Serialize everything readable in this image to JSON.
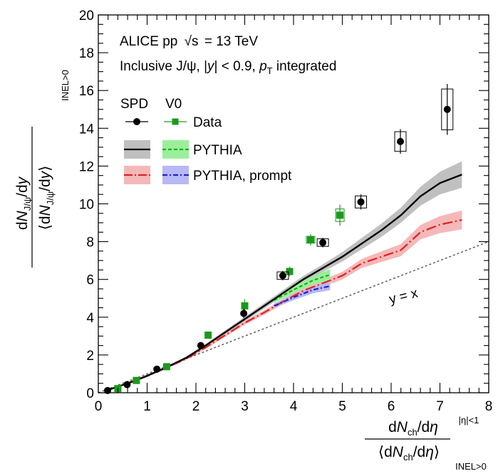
{
  "chart_data": {
    "type": "line",
    "title_line1": "ALICE pp",
    "title_sqrt": "√s",
    "title_energy": "= 13 TeV",
    "subtitle_pre": "Inclusive J/ψ, |",
    "subtitle_y": "y",
    "subtitle_mid": "| < 0.9, ",
    "subtitle_p": "p",
    "subtitle_T": "T",
    "subtitle_post": " integrated",
    "xlabel_d1": "d",
    "xlabel_N1": "N",
    "xlabel_ch1": "ch",
    "xlabel_rest1": "/d",
    "xlabel_eta1": "η",
    "xlabel_open": "⟨d",
    "xlabel_N2": "N",
    "xlabel_ch2": "ch",
    "xlabel_rest2": "/d",
    "xlabel_eta2": "η",
    "xlabel_close": "⟩",
    "xlabel_sup": "|η|<1",
    "xlabel_sub": "INEL>0",
    "ylabel_d1": "d",
    "ylabel_N1": "N",
    "ylabel_sub1": "J/ψ",
    "ylabel_rest1": "/d",
    "ylabel_y1": "y",
    "ylabel_open": "⟨d",
    "ylabel_N2": "N",
    "ylabel_sub2": "J/ψ",
    "ylabel_rest2": "/d",
    "ylabel_y2": "y",
    "ylabel_close": "⟩",
    "ylabel_sub": "INEL>0",
    "xlim": [
      0,
      8
    ],
    "ylim": [
      0,
      20
    ],
    "xticks": [
      "0",
      "1",
      "2",
      "3",
      "4",
      "5",
      "6",
      "7",
      "8"
    ],
    "yticks": [
      "0",
      "2",
      "4",
      "6",
      "8",
      "10",
      "12",
      "14",
      "16",
      "18",
      "20"
    ],
    "annotation_yx": "y = x",
    "legend": {
      "head_spd": "SPD",
      "head_v0": "V0",
      "data_label": "Data",
      "pythia_label": "PYTHIA",
      "prompt_label": "PYTHIA, prompt"
    },
    "colors": {
      "spd_data": "#000000",
      "v0_data": "#1a9a1a",
      "pythia_spd": "#000000",
      "pythia_spd_band": "#c0c0c0",
      "pythia_v0": "#22aa22",
      "pythia_v0_band": "#99f099",
      "prompt_spd": "#e02020",
      "prompt_spd_band": "#f5b8b8",
      "prompt_v0": "#2020d0",
      "prompt_v0_band": "#b8b8f5",
      "yx_line": "#555555"
    },
    "series": [
      {
        "name": "SPD Data",
        "x": [
          0.19,
          0.59,
          1.2,
          2.1,
          2.98,
          3.78,
          4.6,
          5.38,
          6.19,
          7.15
        ],
        "y": [
          0.12,
          0.43,
          1.25,
          2.5,
          4.2,
          6.2,
          7.95,
          10.1,
          13.3,
          15.0
        ],
        "yerr": [
          0.05,
          0.05,
          0.08,
          0.12,
          0.25,
          0.25,
          0.25,
          0.4,
          0.65,
          1.35
        ],
        "syst_boxes": [
          false,
          false,
          false,
          false,
          false,
          true,
          true,
          true,
          true,
          true
        ]
      },
      {
        "name": "V0 Data",
        "x": [
          0.4,
          0.78,
          1.4,
          2.25,
          3.0,
          3.92,
          4.35,
          4.95
        ],
        "y": [
          0.22,
          0.65,
          1.38,
          3.05,
          4.6,
          6.42,
          8.1,
          9.4
        ],
        "yerr": [
          0.05,
          0.06,
          0.08,
          0.12,
          0.35,
          0.25,
          0.3,
          0.55
        ]
      },
      {
        "name": "PYTHIA SPD",
        "x": [
          0.2,
          0.6,
          1.0,
          1.4,
          1.8,
          2.2,
          2.6,
          3.0,
          3.4,
          3.8,
          4.2,
          4.6,
          5.0,
          5.4,
          5.8,
          6.2,
          6.6,
          7.0,
          7.45
        ],
        "y": [
          0.15,
          0.5,
          0.9,
          1.35,
          1.85,
          2.5,
          3.2,
          3.9,
          4.6,
          5.3,
          6.0,
          6.6,
          7.2,
          7.9,
          8.6,
          9.4,
          10.4,
          11.1,
          11.55
        ],
        "band": [
          0.02,
          0.03,
          0.04,
          0.05,
          0.06,
          0.08,
          0.1,
          0.12,
          0.14,
          0.16,
          0.18,
          0.2,
          0.25,
          0.3,
          0.35,
          0.4,
          0.5,
          0.6,
          0.7
        ]
      },
      {
        "name": "PYTHIA V0",
        "x": [
          3.6,
          4.0,
          4.4,
          4.75
        ],
        "y": [
          4.9,
          5.45,
          5.95,
          6.25
        ],
        "band": [
          0.15,
          0.18,
          0.22,
          0.3
        ]
      },
      {
        "name": "PYTHIA prompt SPD",
        "x": [
          0.2,
          0.6,
          1.0,
          1.4,
          1.8,
          2.2,
          2.6,
          3.0,
          3.4,
          3.8,
          4.2,
          4.6,
          5.0,
          5.4,
          5.8,
          6.2,
          6.6,
          7.0,
          7.45
        ],
        "y": [
          0.15,
          0.48,
          0.88,
          1.33,
          1.8,
          2.4,
          3.05,
          3.7,
          4.25,
          4.85,
          5.4,
          5.8,
          6.2,
          6.85,
          7.2,
          7.55,
          8.5,
          8.9,
          9.15
        ],
        "band": [
          0.02,
          0.03,
          0.04,
          0.05,
          0.06,
          0.07,
          0.09,
          0.1,
          0.12,
          0.14,
          0.16,
          0.18,
          0.2,
          0.24,
          0.28,
          0.32,
          0.38,
          0.45,
          0.5
        ]
      },
      {
        "name": "PYTHIA prompt V0",
        "x": [
          3.6,
          4.0,
          4.4,
          4.75
        ],
        "y": [
          4.6,
          5.05,
          5.45,
          5.65
        ],
        "band": [
          0.12,
          0.15,
          0.18,
          0.22
        ]
      },
      {
        "name": "y = x",
        "x": [
          0.0,
          8.0
        ],
        "y": [
          0.0,
          8.0
        ]
      }
    ]
  }
}
